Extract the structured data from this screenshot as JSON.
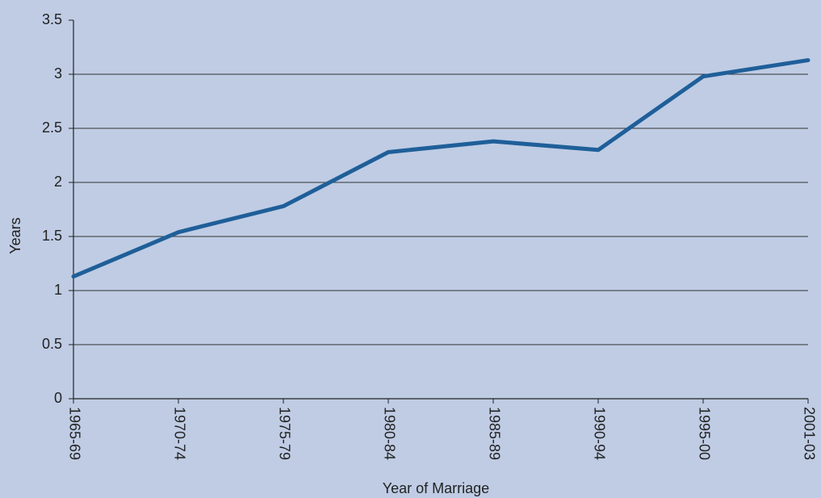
{
  "chart_data": {
    "type": "line",
    "x_label": "Year of Marriage",
    "y_label": "Years",
    "categories": [
      "1965-69",
      "1970-74",
      "1975-79",
      "1980-84",
      "1985-89",
      "1990-94",
      "1995-00",
      "2001-03"
    ],
    "values": [
      1.13,
      1.54,
      1.78,
      2.28,
      2.38,
      2.3,
      2.98,
      3.13
    ],
    "color": "#1f5f99",
    "ylim": [
      0,
      3.5
    ],
    "yticks": [
      0,
      0.5,
      1,
      1.5,
      2,
      2.5,
      3,
      3.5
    ],
    "grid": true
  }
}
